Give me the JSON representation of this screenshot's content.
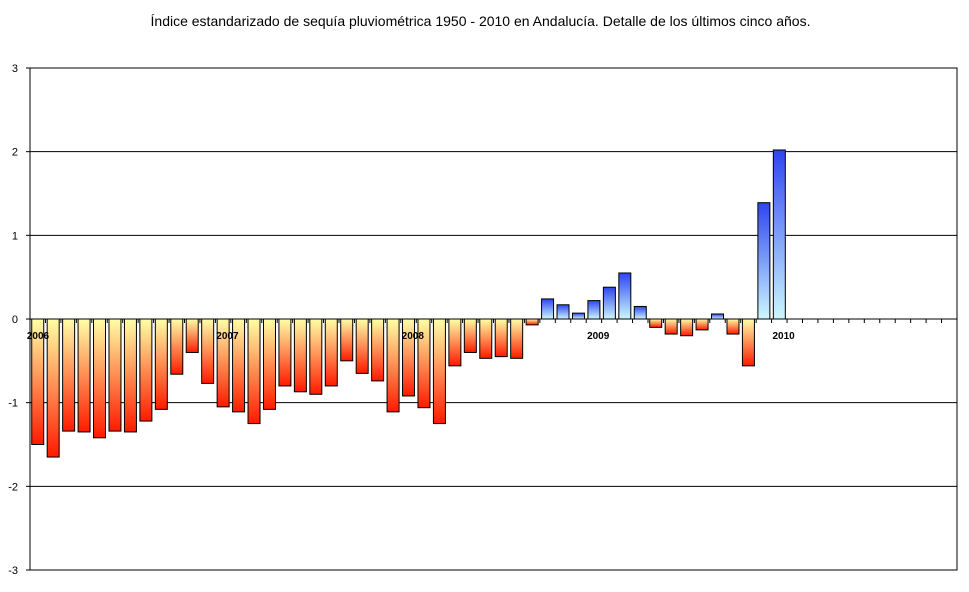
{
  "chart_data": {
    "type": "bar",
    "title": "Índice estandarizado de sequía pluviométrica 1950 - 2010 en Andalucía. Detalle de los últimos cinco años.",
    "xlabel": "",
    "ylabel": "",
    "ylim": [
      -3,
      3
    ],
    "yticks": [
      "3",
      "2",
      "1",
      "0",
      "-1",
      "-2",
      "-3"
    ],
    "year_labels": [
      "2006",
      "2007",
      "2008",
      "2009",
      "2010"
    ],
    "grid": true,
    "legend": "none",
    "months_total": 60,
    "values": [
      -1.5,
      -1.65,
      -1.34,
      -1.35,
      -1.42,
      -1.34,
      -1.35,
      -1.22,
      -1.08,
      -0.66,
      -0.4,
      -0.77,
      -1.05,
      -1.11,
      -1.25,
      -1.08,
      -0.8,
      -0.87,
      -0.9,
      -0.8,
      -0.5,
      -0.65,
      -0.74,
      -1.11,
      -0.92,
      -1.06,
      -1.25,
      -0.56,
      -0.4,
      -0.47,
      -0.45,
      -0.47,
      -0.07,
      0.24,
      0.17,
      0.07,
      0.22,
      0.38,
      0.55,
      0.15,
      -0.1,
      -0.18,
      -0.2,
      -0.13,
      0.06,
      -0.18,
      -0.56,
      1.39,
      2.02
    ],
    "colors": {
      "negative_top": "#FFFFA6",
      "negative_bottom": "#FF1A00",
      "positive_top": "#2E45F0",
      "positive_bottom": "#CCF7FF"
    }
  }
}
